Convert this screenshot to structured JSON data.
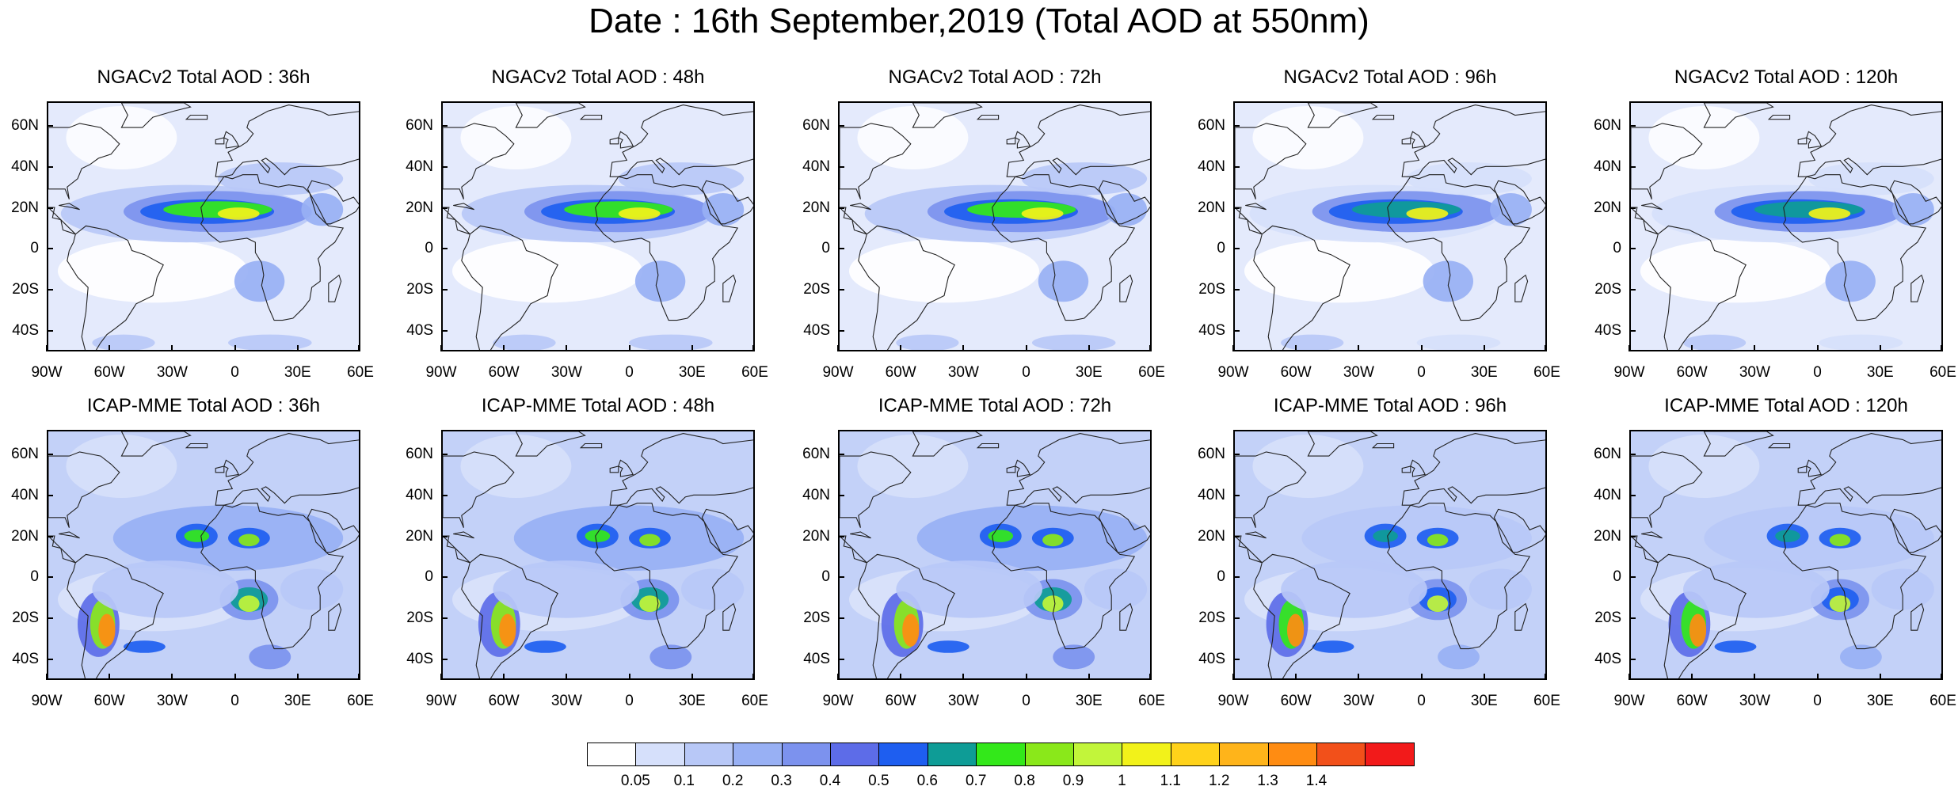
{
  "title": "Date : 16th September,2019 (Total AOD at 550nm)",
  "panels": [
    {
      "row": "NGACv2",
      "title": "NGACv2 Total AOD : 36h"
    },
    {
      "row": "NGACv2",
      "title": "NGACv2 Total AOD : 48h"
    },
    {
      "row": "NGACv2",
      "title": "NGACv2 Total AOD : 72h"
    },
    {
      "row": "NGACv2",
      "title": "NGACv2 Total AOD : 96h"
    },
    {
      "row": "NGACv2",
      "title": "NGACv2 Total AOD : 120h"
    },
    {
      "row": "ICAP-MME",
      "title": "ICAP-MME Total AOD : 36h"
    },
    {
      "row": "ICAP-MME",
      "title": "ICAP-MME Total AOD : 48h"
    },
    {
      "row": "ICAP-MME",
      "title": "ICAP-MME Total AOD : 72h"
    },
    {
      "row": "ICAP-MME",
      "title": "ICAP-MME Total AOD : 96h"
    },
    {
      "row": "ICAP-MME",
      "title": "ICAP-MME Total AOD : 120h"
    }
  ],
  "lat_ticks": [
    "60N",
    "40N",
    "20N",
    "0",
    "20S",
    "40S"
  ],
  "lon_ticks": [
    "90W",
    "60W",
    "30W",
    "0",
    "30E",
    "60E"
  ],
  "colorbar": {
    "colors": [
      "#ffffff",
      "#d6e0fb",
      "#b8c8f7",
      "#98b0f4",
      "#7c92ee",
      "#5d6ce8",
      "#1e5ef0",
      "#0e9c96",
      "#33e81a",
      "#8ae81a",
      "#c2f53a",
      "#f2f21a",
      "#ffd21a",
      "#ffb41a",
      "#ff8c12",
      "#f2501a",
      "#f21a1a"
    ],
    "labels": [
      "0.05",
      "0.1",
      "0.2",
      "0.3",
      "0.4",
      "0.5",
      "0.6",
      "0.7",
      "0.8",
      "0.9",
      "1",
      "1.1",
      "1.2",
      "1.3",
      "1.4"
    ]
  }
}
